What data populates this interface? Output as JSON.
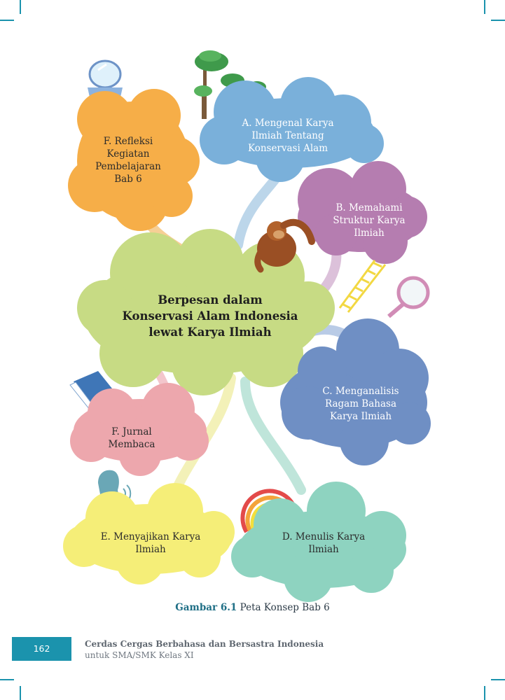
{
  "concept_map": {
    "center": {
      "lines": [
        "Berpesan dalam",
        "Konservasi Alam Indonesia",
        "lewat Karya Ilmiah"
      ]
    },
    "nodes": [
      {
        "id": "a",
        "lines": [
          "A. Mengenal Karya",
          "Ilmiah Tentang",
          "Konservasi Alam"
        ],
        "color": "#7ab0da"
      },
      {
        "id": "b",
        "lines": [
          "B. Memahami",
          "Struktur Karya",
          "Ilmiah"
        ],
        "color": "#b57db0"
      },
      {
        "id": "c",
        "lines": [
          "C. Menganalisis",
          "Ragam Bahasa",
          "Karya Ilmiah"
        ],
        "color": "#6f8fc4"
      },
      {
        "id": "d",
        "lines": [
          "D. Menulis Karya",
          "Ilmiah"
        ],
        "color": "#8ed3c0"
      },
      {
        "id": "e",
        "lines": [
          "E. Menyajikan Karya",
          "Ilmiah"
        ],
        "color": "#f5ee78"
      },
      {
        "id": "f_jurnal",
        "lines": [
          "F. Jurnal",
          "Membaca"
        ],
        "color": "#eda7ad"
      },
      {
        "id": "f_refleksi",
        "lines": [
          "F. Refleksi",
          "Kegiatan",
          "Pembelajaran",
          "Bab 6"
        ],
        "color": "#f6ae48"
      }
    ],
    "center_color": "#c7db84"
  },
  "caption": {
    "figure_label": "Gambar 6.1",
    "text": "Peta Konsep Bab 6"
  },
  "footer": {
    "page_number": "162",
    "book_title": "Cerdas Cergas Berbahasa dan Bersastra Indonesia",
    "book_subtitle": "untuk SMA/SMK Kelas XI",
    "accent_color": "#1b93ad"
  },
  "icons": [
    "tree-icon",
    "mirror-icon",
    "orangutan-icon",
    "ladder-icon",
    "magnifier-icon",
    "book-icon",
    "speaker-head-icon",
    "rainbow-icon"
  ]
}
